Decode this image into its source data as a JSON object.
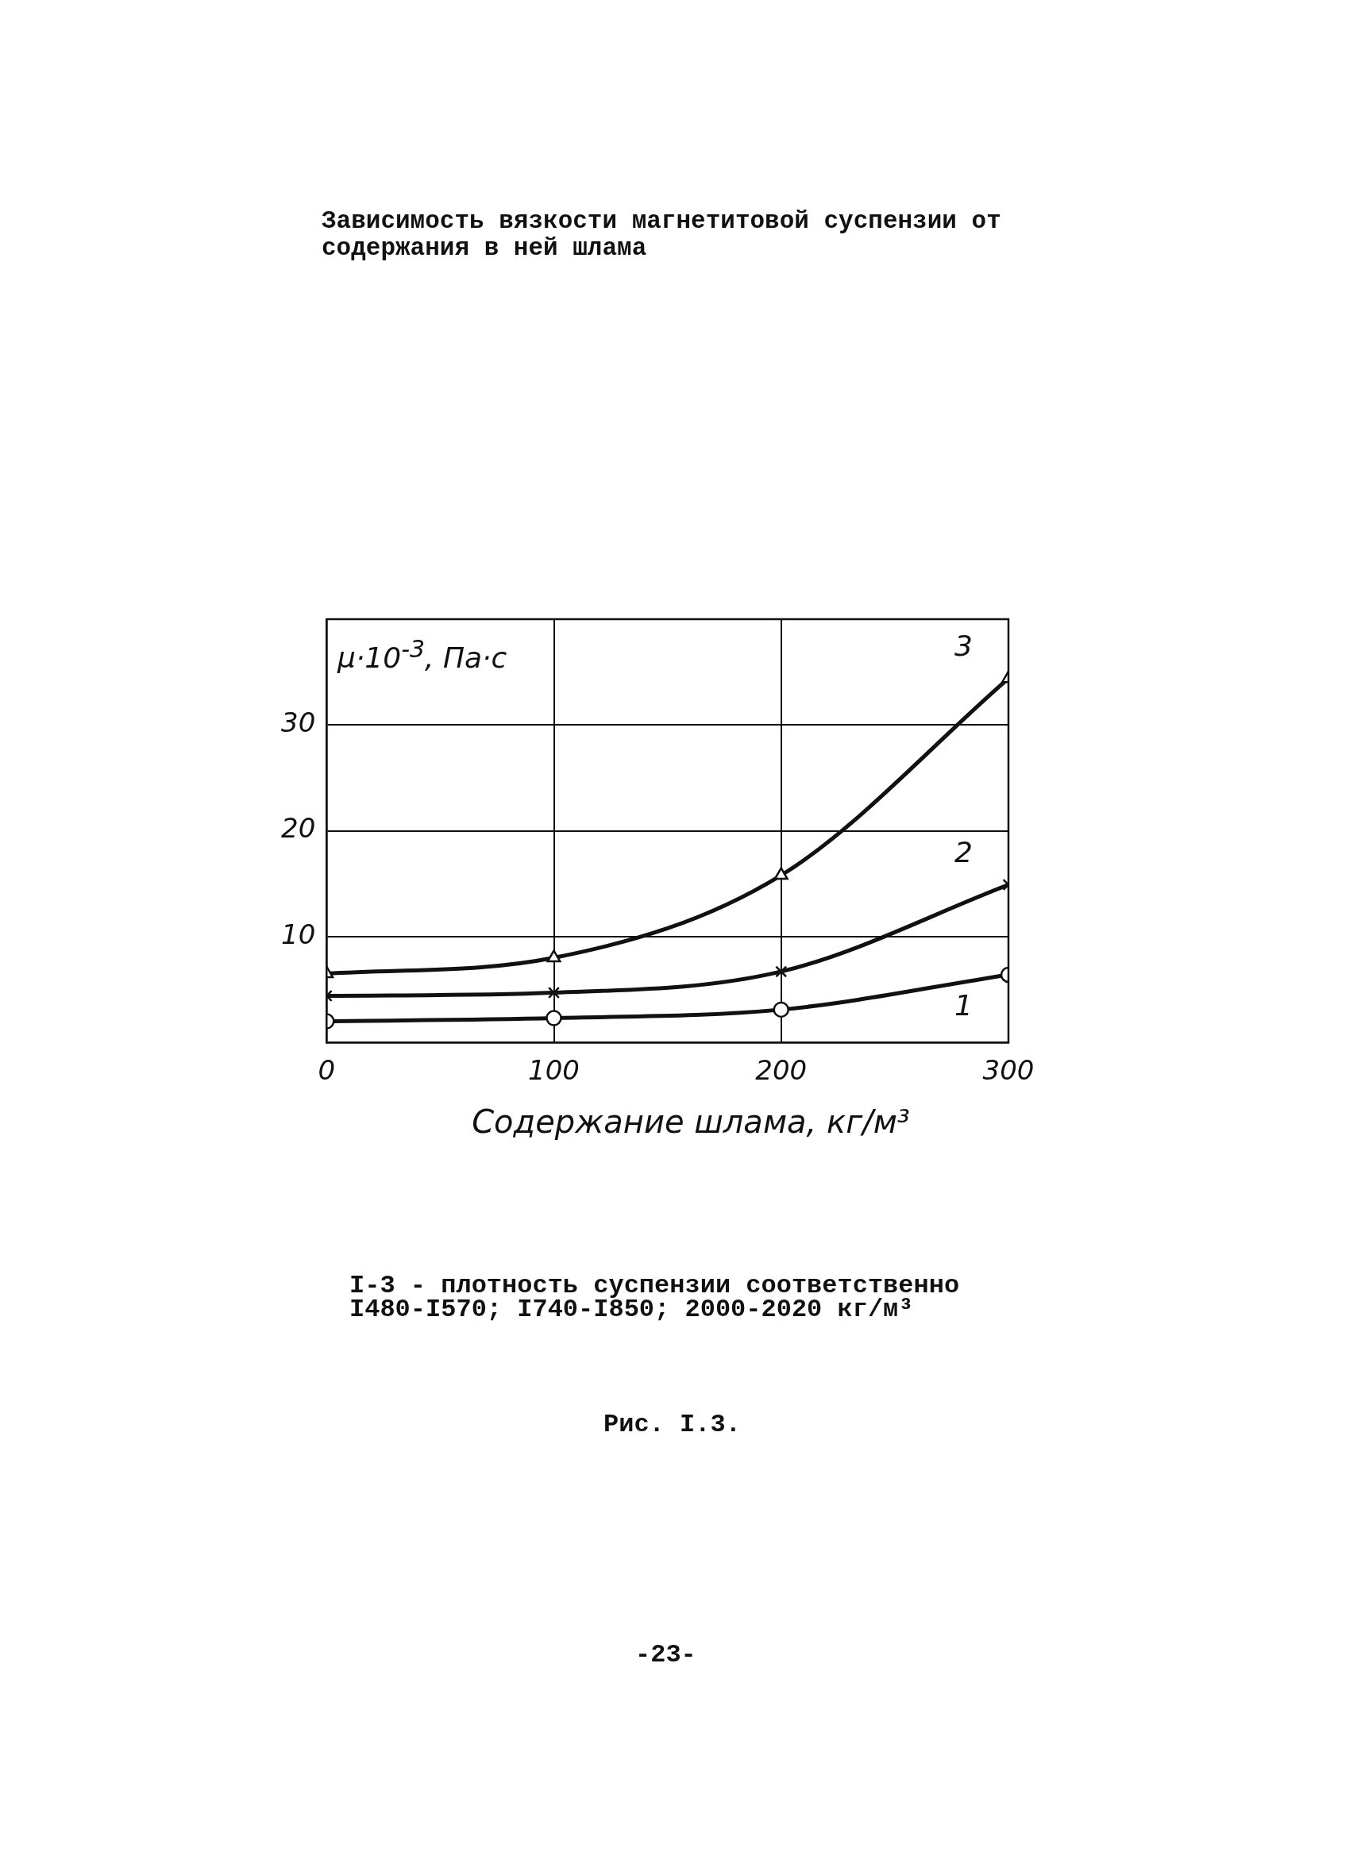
{
  "chart_data": {
    "type": "line",
    "title": "Зависимость вязкости магнетитовой суспензии от содержания в ней шлама",
    "xlabel": "Содержание шлама, кг/м³",
    "ylabel": "μ·10$^{-3}$, Па·с",
    "xlim": [
      0,
      300
    ],
    "ylim": [
      0,
      40
    ],
    "xticks": [
      0,
      100,
      200,
      300
    ],
    "yticks": [
      10,
      20,
      30
    ],
    "grid": true,
    "legend": false,
    "series": [
      {
        "name": "1",
        "color": "#111111",
        "marker": "circle",
        "x": [
          0,
          100,
          200,
          300
        ],
        "values": [
          2.0,
          2.3,
          3.1,
          6.4
        ]
      },
      {
        "name": "2",
        "color": "#111111",
        "marker": "cross",
        "x": [
          0,
          100,
          200,
          300
        ],
        "values": [
          4.4,
          4.7,
          6.7,
          14.9
        ]
      },
      {
        "name": "3",
        "color": "#111111",
        "marker": "triangle",
        "x": [
          0,
          100,
          200,
          300
        ],
        "values": [
          6.5,
          8.0,
          15.8,
          34.4
        ]
      }
    ],
    "annotations": [
      "I-3 - плотность суспензии соответственно I480-I570; I740-I850; 2000-2020 кг/м³",
      "Рис. I.3.",
      "-23-"
    ]
  }
}
